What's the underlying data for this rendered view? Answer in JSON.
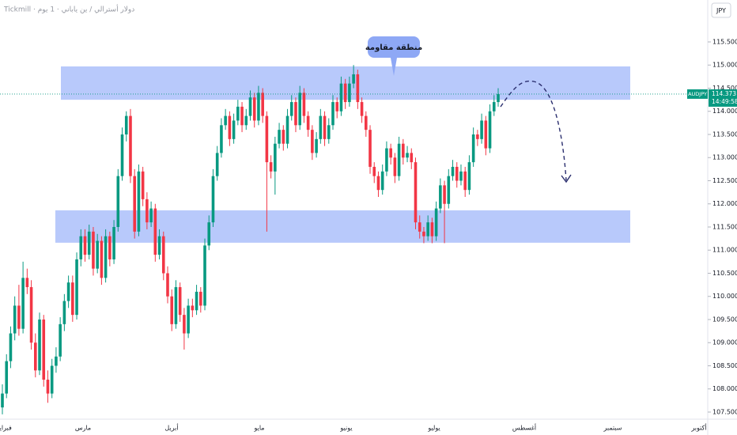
{
  "chart_data": {
    "type": "candlestick",
    "header": "Tickmill · دولار أسترالي / ين ياباني · 1 يوم",
    "currency": "JPY",
    "symbol": "AUDJPY",
    "countdown": "14:49:58",
    "annotation": "منطقة مقاومة",
    "up_color": "#089981",
    "down_color": "#f23645",
    "zone_color": "#b8c9fb",
    "ylim": [
      107.346,
      116.406
    ],
    "yticks": [
      {
        "value": 107.5,
        "label": "107.500"
      },
      {
        "value": 108,
        "label": "108.000"
      },
      {
        "value": 108.5,
        "label": "108.500"
      },
      {
        "value": 109,
        "label": "109.000"
      },
      {
        "value": 109.5,
        "label": "109.500"
      },
      {
        "value": 110,
        "label": "110.000"
      },
      {
        "value": 110.5,
        "label": "110.500"
      },
      {
        "value": 111,
        "label": "111.000"
      },
      {
        "value": 111.5,
        "label": "111.500"
      },
      {
        "value": 112,
        "label": "112.000"
      },
      {
        "value": 112.5,
        "label": "112.500"
      },
      {
        "value": 113,
        "label": "113.000"
      },
      {
        "value": 113.5,
        "label": "113.500"
      },
      {
        "value": 114,
        "label": "114.000"
      },
      {
        "value": 114.5,
        "label": "114.500"
      },
      {
        "value": 115,
        "label": "115.000"
      },
      {
        "value": 115.5,
        "label": "115.500"
      }
    ],
    "x_labels": [
      "فبراير",
      "مارس",
      "أبريل",
      "مايو",
      "يونيو",
      "يوليو",
      "أغسطس",
      "سبتمبر",
      "أكتوبر"
    ],
    "zones": [
      [
        114.25,
        114.97
      ],
      [
        111.16,
        111.86
      ]
    ],
    "candles": [
      [
        107.6,
        108.1,
        107.45,
        107.9
      ],
      [
        107.9,
        108.75,
        107.8,
        108.6
      ],
      [
        108.6,
        109.35,
        108.45,
        109.2
      ],
      [
        109.2,
        110.0,
        109.05,
        109.8
      ],
      [
        109.8,
        110.25,
        109.15,
        109.3
      ],
      [
        109.3,
        110.75,
        109.2,
        110.4
      ],
      [
        110.4,
        110.6,
        110.05,
        110.2
      ],
      [
        110.2,
        110.35,
        108.85,
        109.0
      ],
      [
        109.0,
        109.2,
        108.25,
        108.4
      ],
      [
        108.4,
        109.65,
        108.3,
        109.5
      ],
      [
        109.5,
        109.6,
        108.05,
        108.2
      ],
      [
        108.2,
        108.4,
        107.7,
        107.9
      ],
      [
        107.9,
        108.65,
        107.8,
        108.5
      ],
      [
        108.5,
        108.9,
        108.35,
        108.7
      ],
      [
        108.7,
        109.55,
        108.6,
        109.4
      ],
      [
        109.4,
        110.05,
        109.25,
        109.9
      ],
      [
        109.9,
        110.45,
        109.75,
        110.3
      ],
      [
        110.3,
        110.45,
        109.45,
        109.6
      ],
      [
        109.6,
        110.95,
        109.5,
        110.8
      ],
      [
        110.8,
        111.45,
        110.65,
        111.3
      ],
      [
        111.3,
        111.45,
        110.75,
        110.9
      ],
      [
        110.9,
        111.55,
        110.8,
        111.4
      ],
      [
        111.4,
        111.5,
        110.45,
        110.6
      ],
      [
        110.6,
        111.35,
        110.5,
        111.2
      ],
      [
        111.2,
        111.3,
        110.25,
        110.4
      ],
      [
        110.4,
        111.45,
        110.3,
        111.3
      ],
      [
        111.3,
        111.4,
        110.65,
        110.8
      ],
      [
        110.8,
        111.65,
        110.7,
        111.5
      ],
      [
        111.5,
        112.75,
        111.4,
        112.6
      ],
      [
        112.6,
        113.65,
        112.5,
        113.5
      ],
      [
        113.5,
        114.0,
        113.35,
        113.9
      ],
      [
        113.9,
        114.05,
        112.45,
        112.6
      ],
      [
        112.6,
        112.75,
        111.25,
        111.4
      ],
      [
        111.4,
        112.85,
        111.3,
        112.7
      ],
      [
        112.7,
        112.8,
        111.95,
        112.1
      ],
      [
        112.1,
        112.25,
        111.45,
        111.6
      ],
      [
        111.6,
        112.05,
        111.5,
        111.9
      ],
      [
        111.9,
        112.0,
        110.75,
        110.9
      ],
      [
        110.9,
        111.45,
        110.8,
        111.3
      ],
      [
        111.3,
        111.4,
        110.35,
        110.5
      ],
      [
        110.5,
        110.65,
        109.85,
        110.0
      ],
      [
        110.0,
        110.15,
        109.25,
        109.4
      ],
      [
        109.4,
        110.35,
        109.3,
        110.2
      ],
      [
        110.2,
        110.3,
        109.45,
        109.6
      ],
      [
        109.6,
        109.75,
        108.85,
        109.2
      ],
      [
        109.2,
        109.95,
        109.1,
        109.8
      ],
      [
        109.8,
        109.95,
        109.55,
        109.7
      ],
      [
        109.7,
        110.25,
        109.6,
        110.1
      ],
      [
        110.1,
        110.2,
        109.65,
        109.8
      ],
      [
        109.8,
        111.25,
        109.7,
        111.1
      ],
      [
        111.1,
        111.75,
        111.0,
        111.6
      ],
      [
        111.6,
        112.75,
        111.5,
        112.6
      ],
      [
        112.6,
        113.25,
        112.5,
        113.1
      ],
      [
        113.1,
        113.85,
        113.0,
        113.7
      ],
      [
        113.7,
        114.05,
        113.6,
        113.9
      ],
      [
        113.9,
        114.0,
        113.25,
        113.4
      ],
      [
        113.4,
        113.95,
        113.3,
        113.8
      ],
      [
        113.8,
        114.25,
        113.7,
        114.1
      ],
      [
        114.1,
        114.2,
        113.55,
        113.7
      ],
      [
        113.7,
        114.05,
        113.6,
        113.9
      ],
      [
        113.9,
        114.45,
        113.8,
        114.3
      ],
      [
        114.3,
        114.4,
        113.65,
        113.8
      ],
      [
        113.8,
        114.55,
        113.7,
        114.4
      ],
      [
        114.4,
        114.5,
        113.75,
        113.9
      ],
      [
        113.9,
        114.0,
        111.4,
        112.9
      ],
      [
        112.9,
        113.05,
        112.55,
        112.7
      ],
      [
        112.7,
        113.45,
        112.2,
        113.3
      ],
      [
        113.3,
        113.75,
        113.2,
        113.6
      ],
      [
        113.6,
        113.7,
        113.15,
        113.3
      ],
      [
        113.3,
        114.05,
        113.2,
        113.9
      ],
      [
        113.9,
        114.35,
        113.8,
        114.2
      ],
      [
        114.2,
        114.3,
        113.55,
        113.7
      ],
      [
        113.7,
        114.55,
        113.6,
        114.4
      ],
      [
        114.4,
        114.5,
        113.75,
        113.9
      ],
      [
        113.9,
        114.0,
        113.45,
        113.6
      ],
      [
        113.6,
        113.7,
        112.95,
        113.1
      ],
      [
        113.1,
        113.55,
        113.0,
        113.4
      ],
      [
        113.4,
        114.05,
        113.3,
        113.9
      ],
      [
        113.9,
        114.0,
        113.25,
        113.4
      ],
      [
        113.4,
        113.85,
        113.3,
        113.7
      ],
      [
        113.7,
        114.35,
        113.6,
        114.2
      ],
      [
        114.2,
        114.3,
        113.85,
        114.0
      ],
      [
        114.0,
        114.75,
        113.9,
        114.6
      ],
      [
        114.6,
        114.7,
        114.05,
        114.2
      ],
      [
        114.2,
        114.75,
        114.1,
        114.6
      ],
      [
        114.6,
        115.0,
        114.5,
        114.8
      ],
      [
        114.8,
        114.9,
        114.05,
        114.2
      ],
      [
        114.2,
        114.3,
        113.75,
        113.9
      ],
      [
        113.9,
        114.0,
        113.45,
        113.6
      ],
      [
        113.6,
        113.7,
        112.65,
        112.8
      ],
      [
        112.8,
        112.9,
        112.45,
        112.6
      ],
      [
        112.6,
        112.7,
        112.15,
        112.3
      ],
      [
        112.3,
        112.85,
        112.2,
        112.7
      ],
      [
        112.7,
        113.35,
        112.6,
        113.2
      ],
      [
        113.2,
        113.3,
        112.85,
        113.0
      ],
      [
        113.0,
        113.1,
        112.45,
        112.6
      ],
      [
        112.6,
        113.45,
        112.5,
        113.3
      ],
      [
        113.3,
        113.4,
        112.85,
        113.0
      ],
      [
        113.0,
        113.25,
        112.9,
        113.1
      ],
      [
        113.1,
        113.2,
        112.75,
        112.9
      ],
      [
        112.9,
        113.0,
        111.45,
        111.6
      ],
      [
        111.6,
        111.75,
        111.25,
        111.4
      ],
      [
        111.4,
        111.5,
        111.15,
        111.3
      ],
      [
        111.3,
        111.75,
        111.2,
        111.6
      ],
      [
        111.6,
        111.7,
        111.15,
        111.3
      ],
      [
        111.3,
        112.05,
        111.2,
        111.9
      ],
      [
        111.9,
        112.55,
        111.8,
        112.4
      ],
      [
        112.4,
        112.5,
        111.15,
        112.0
      ],
      [
        112.0,
        112.75,
        111.9,
        112.6
      ],
      [
        112.6,
        112.95,
        112.5,
        112.8
      ],
      [
        112.8,
        112.9,
        112.35,
        112.5
      ],
      [
        112.5,
        112.85,
        112.4,
        112.7
      ],
      [
        112.7,
        112.8,
        112.15,
        112.3
      ],
      [
        112.3,
        113.05,
        112.2,
        112.9
      ],
      [
        112.9,
        113.65,
        112.8,
        113.5
      ],
      [
        113.5,
        113.6,
        113.25,
        113.4
      ],
      [
        113.4,
        113.95,
        113.3,
        113.8
      ],
      [
        113.8,
        113.9,
        113.05,
        113.2
      ],
      [
        113.2,
        114.15,
        113.1,
        114.0
      ],
      [
        114.0,
        114.35,
        113.9,
        114.2
      ],
      [
        114.2,
        114.5,
        114.1,
        114.373
      ]
    ]
  }
}
